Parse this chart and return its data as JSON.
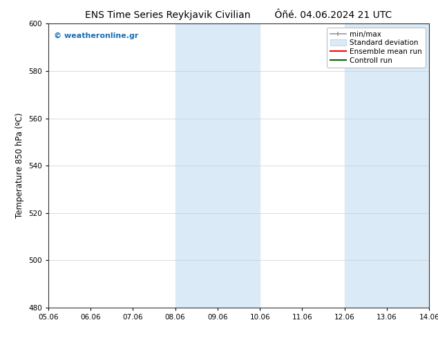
{
  "title_left": "ENS Time Series Reykjavik Civilian",
  "title_right": "Ôñé. 04.06.2024 21 UTC",
  "ylabel": "Temperature 850 hPa (ºC)",
  "xlabel_ticks": [
    "05.06",
    "06.06",
    "07.06",
    "08.06",
    "09.06",
    "10.06",
    "11.06",
    "12.06",
    "13.06",
    "14.06"
  ],
  "xlim": [
    0,
    9
  ],
  "ylim": [
    480,
    600
  ],
  "yticks": [
    480,
    500,
    520,
    540,
    560,
    580,
    600
  ],
  "background_color": "#ffffff",
  "shaded_bands": [
    {
      "xstart": 3,
      "xend": 5,
      "color": "#daeaf7"
    },
    {
      "xstart": 7,
      "xend": 9,
      "color": "#daeaf7"
    }
  ],
  "watermark_text": "© weatheronline.gr",
  "watermark_color": "#1a6db5",
  "title_fontsize": 10,
  "tick_fontsize": 7.5,
  "ylabel_fontsize": 8.5,
  "legend_fontsize": 7.5
}
